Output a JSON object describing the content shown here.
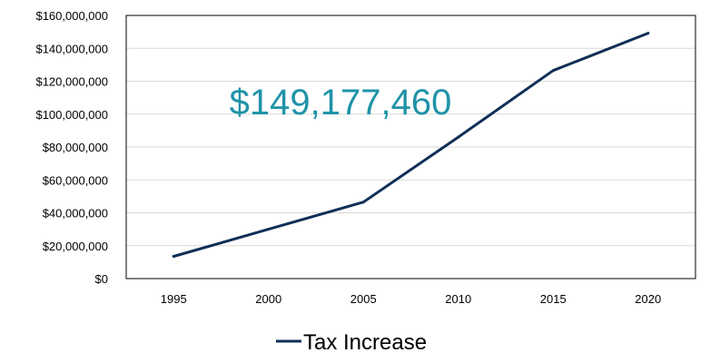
{
  "chart_data": {
    "type": "line",
    "x": [
      1995,
      2000,
      2005,
      2010,
      2015,
      2020
    ],
    "series": [
      {
        "name": "Tax Increase",
        "values": [
          13500000,
          30000000,
          46500000,
          86000000,
          126500000,
          149177460
        ]
      }
    ],
    "ylim": [
      0,
      160000000
    ],
    "yticks": [
      "$0",
      "$20,000,000",
      "$40,000,000",
      "$60,000,000",
      "$80,000,000",
      "$100,000,000",
      "$120,000,000",
      "$140,000,000",
      "$160,000,000"
    ],
    "xticks": [
      "1995",
      "2000",
      "2005",
      "2010",
      "2015",
      "2020"
    ],
    "annotation": "$149,177,460",
    "grid": true,
    "legend_position": "bottom"
  },
  "colors": {
    "line": "#0f2f56",
    "annotation": "#1f93a8",
    "grid": "#d9d9d9",
    "axis": "#000000"
  }
}
